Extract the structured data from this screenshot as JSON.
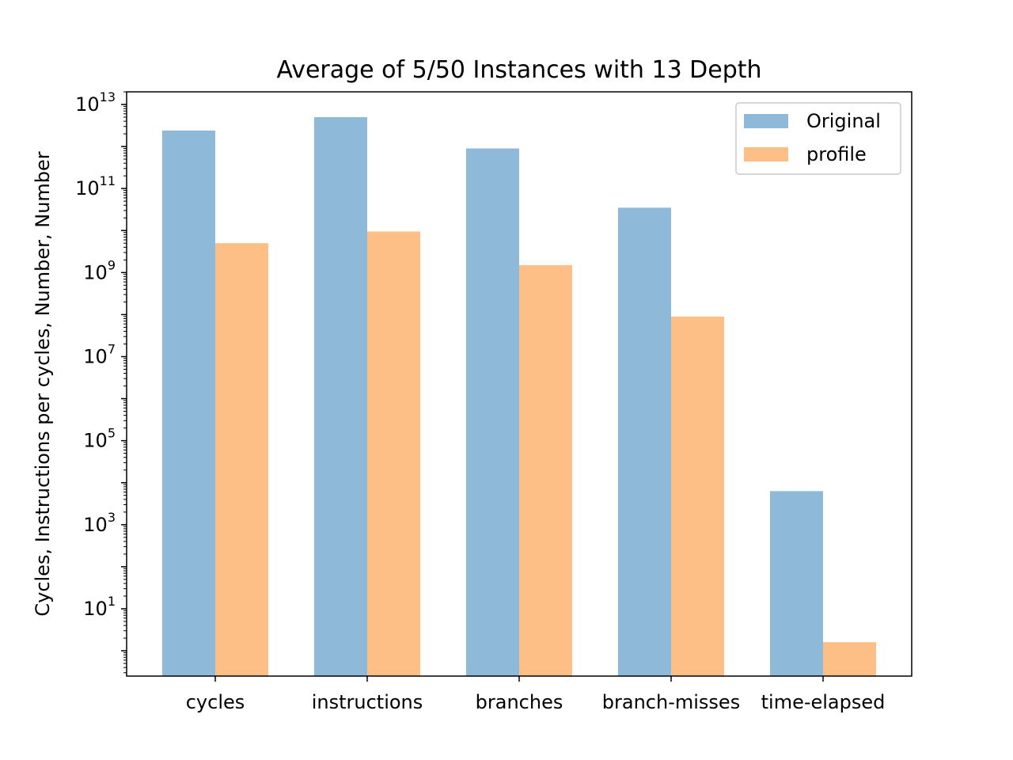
{
  "chart_data": {
    "type": "bar",
    "title": "Average of 5/50 Instances with 13 Depth",
    "xlabel": "",
    "ylabel": "Cycles, Instructions per cycles, Number, Number",
    "yscale": "log",
    "ylim": [
      0.25,
      20000000000000
    ],
    "yticks": [
      {
        "value": 10,
        "base": "10",
        "exp": "1"
      },
      {
        "value": 1000,
        "base": "10",
        "exp": "3"
      },
      {
        "value": 100000,
        "base": "10",
        "exp": "5"
      },
      {
        "value": 10000000,
        "base": "10",
        "exp": "7"
      },
      {
        "value": 1000000000,
        "base": "10",
        "exp": "9"
      },
      {
        "value": 100000000000,
        "base": "10",
        "exp": "11"
      },
      {
        "value": 10000000000000,
        "base": "10",
        "exp": "13"
      }
    ],
    "categories": [
      "cycles",
      "instructions",
      "branches",
      "branch-misses",
      "time-elapsed"
    ],
    "series": [
      {
        "name": "Original",
        "color": "#8fb9d8",
        "values": [
          2400000000000,
          5000000000000,
          900000000000,
          35000000000,
          6300
        ]
      },
      {
        "name": "profile",
        "color": "#febf87",
        "values": [
          5000000000,
          9500000000,
          1500000000,
          90000000,
          1.6
        ]
      }
    ],
    "legend_position": "top-right",
    "grid": false
  }
}
